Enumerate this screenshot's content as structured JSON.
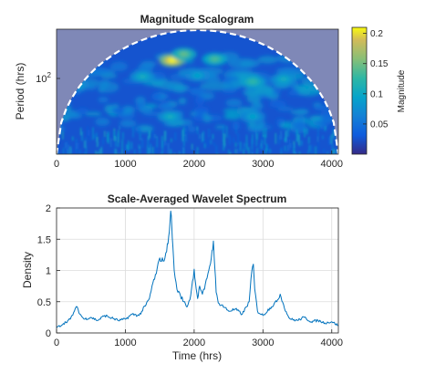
{
  "chart_data": [
    {
      "type": "heatmap",
      "title": "Magnitude Scalogram",
      "xlabel": "",
      "ylabel": "Period (hrs)",
      "xlim": [
        0,
        4096
      ],
      "x_ticks": [
        "0",
        "1000",
        "2000",
        "3000",
        "4000"
      ],
      "y_scale": "log",
      "y_ticks": [
        {
          "value": 100,
          "base": "10",
          "exp": "2"
        }
      ],
      "colormap": "parula",
      "colorbar": {
        "label": "Magnitude",
        "range": [
          0,
          0.21
        ],
        "ticks": [
          "0.05",
          "0.1",
          "0.15",
          "0.2"
        ],
        "tick_values": [
          0.05,
          0.1,
          0.15,
          0.2
        ]
      },
      "cone_of_influence": {
        "style": "dashed",
        "color": "#ffffff"
      },
      "hotspots": [
        {
          "time": 1680,
          "period_log_frac": 0.75,
          "magnitude": 0.21
        },
        {
          "time": 1850,
          "period_log_frac": 0.8,
          "magnitude": 0.14
        },
        {
          "time": 2300,
          "period_log_frac": 0.76,
          "magnitude": 0.13
        },
        {
          "time": 1250,
          "period_log_frac": 0.62,
          "magnitude": 0.1
        },
        {
          "time": 2050,
          "period_log_frac": 0.63,
          "magnitude": 0.09
        },
        {
          "time": 2850,
          "period_log_frac": 0.58,
          "magnitude": 0.12
        },
        {
          "time": 3300,
          "period_log_frac": 0.6,
          "magnitude": 0.1
        },
        {
          "time": 300,
          "period_log_frac": 0.55,
          "magnitude": 0.09
        },
        {
          "time": 1650,
          "period_log_frac": 0.3,
          "magnitude": 0.1
        },
        {
          "time": 2850,
          "period_log_frac": 0.3,
          "magnitude": 0.09
        }
      ]
    },
    {
      "type": "line",
      "title": "Scale-Averaged Wavelet Spectrum",
      "xlabel": "Time (hrs)",
      "ylabel": "Density",
      "xlim": [
        0,
        4096
      ],
      "ylim": [
        0,
        2
      ],
      "grid": true,
      "x_ticks": [
        "0",
        "1000",
        "2000",
        "3000",
        "4000"
      ],
      "y_ticks": [
        "0",
        "0.5",
        "1",
        "1.5",
        "2"
      ],
      "color": "#0072BD",
      "series": [
        {
          "x": [
            0,
            100,
            200,
            260,
            300,
            340,
            400,
            500,
            600,
            700,
            800,
            900,
            1000,
            1100,
            1200,
            1300,
            1350,
            1400,
            1450,
            1500,
            1550,
            1600,
            1630,
            1660,
            1675,
            1690,
            1710,
            1750,
            1800,
            1850,
            1900,
            1950,
            2000,
            2020,
            2050,
            2080,
            2120,
            2150,
            2200,
            2250,
            2280,
            2300,
            2320,
            2350,
            2400,
            2500,
            2600,
            2700,
            2800,
            2840,
            2860,
            2880,
            2920,
            3000,
            3100,
            3200,
            3250,
            3300,
            3350,
            3400,
            3500,
            3600,
            3700,
            3800,
            3900,
            4000,
            4096
          ],
          "y": [
            0.08,
            0.15,
            0.22,
            0.35,
            0.42,
            0.3,
            0.22,
            0.25,
            0.2,
            0.28,
            0.24,
            0.2,
            0.22,
            0.3,
            0.28,
            0.45,
            0.55,
            0.8,
            0.95,
            1.2,
            1.15,
            1.3,
            1.55,
            1.95,
            1.7,
            1.4,
            1.0,
            0.7,
            0.6,
            0.5,
            0.42,
            0.6,
            1.02,
            0.8,
            0.55,
            0.75,
            0.62,
            0.7,
            0.95,
            1.2,
            1.47,
            1.05,
            0.65,
            0.48,
            0.45,
            0.35,
            0.38,
            0.3,
            0.5,
            1.0,
            1.1,
            0.7,
            0.35,
            0.28,
            0.4,
            0.5,
            0.62,
            0.45,
            0.3,
            0.22,
            0.2,
            0.25,
            0.18,
            0.2,
            0.16,
            0.18,
            0.12
          ]
        }
      ]
    }
  ]
}
